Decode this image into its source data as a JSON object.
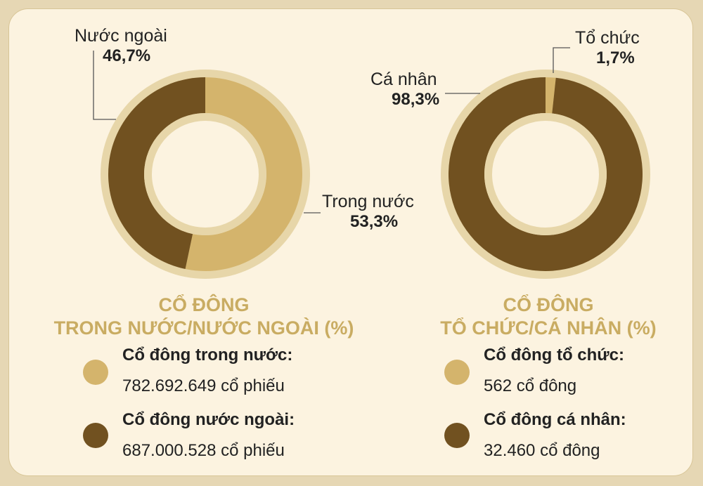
{
  "colors": {
    "light": "#d4b46c",
    "dark": "#715120",
    "ring_outer": "#e7d6a9",
    "title": "#c9ac62"
  },
  "chart_data": [
    {
      "type": "pie",
      "title_line1": "CỔ ĐÔNG",
      "title_line2": "TRONG NƯỚC/NƯỚC NGOÀI (%)",
      "slices": [
        {
          "label": "Trong nước",
          "display": "53,3%",
          "value": 53.3,
          "color": "#d4b46c"
        },
        {
          "label": "Nước ngoài",
          "display": "46,7%",
          "value": 46.7,
          "color": "#715120"
        }
      ],
      "legend": [
        {
          "label": "Cổ đông trong nước:",
          "value": "782.692.649 cổ phiếu",
          "color": "#d4b46c"
        },
        {
          "label": "Cổ đông nước ngoài:",
          "value": "687.000.528 cổ phiếu",
          "color": "#715120"
        }
      ]
    },
    {
      "type": "pie",
      "title_line1": "CỔ ĐÔNG",
      "title_line2": "TỔ CHỨC/CÁ NHÂN (%)",
      "slices": [
        {
          "label": "Tổ chức",
          "display": "1,7%",
          "value": 1.7,
          "color": "#d4b46c"
        },
        {
          "label": "Cá nhân",
          "display": "98,3%",
          "value": 98.3,
          "color": "#715120"
        }
      ],
      "legend": [
        {
          "label": "Cổ đông tổ chức:",
          "value": "562 cổ đông",
          "color": "#d4b46c"
        },
        {
          "label": "Cổ đông cá nhân:",
          "value": "32.460 cổ đông",
          "color": "#715120"
        }
      ]
    }
  ]
}
